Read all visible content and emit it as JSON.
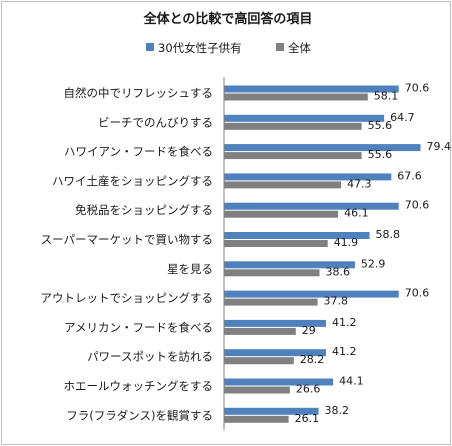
{
  "chart_data": {
    "type": "bar",
    "orientation": "horizontal",
    "title": "全体との比較で高回答の項目",
    "categories": [
      "自然の中でリフレッシュする",
      "ビーチでのんびりする",
      "ハワイアン・フードを食べる",
      "ハワイ土産をショッピングする",
      "免税品をショッピングする",
      "スーパーマーケットで買い物する",
      "星を見る",
      "アウトレットでショッピングする",
      "アメリカン・フードを食べる",
      "パワースポットを訪れる",
      "ホエールウォッチングをする",
      "フラ(フラダンス)を観賞する"
    ],
    "series": [
      {
        "name": "30代女性子供有",
        "color": "#4f81bd",
        "values": [
          70.6,
          64.7,
          79.4,
          67.6,
          70.6,
          58.8,
          52.9,
          70.6,
          41.2,
          41.2,
          44.1,
          38.2
        ],
        "labels": [
          "70.6",
          "64.7",
          "79.4",
          "67.6",
          "70.6",
          "58.8",
          "52.9",
          "70.6",
          "41.2",
          "41.2",
          "44.1",
          "38.2"
        ]
      },
      {
        "name": "全体",
        "color": "#808080",
        "values": [
          58.1,
          55.6,
          55.6,
          47.3,
          46.1,
          41.9,
          38.6,
          37.8,
          29,
          28.2,
          26.6,
          26.1
        ],
        "labels": [
          "58.1",
          "55.6",
          "55.6",
          "47.3",
          "46.1",
          "41.9",
          "38.6",
          "37.8",
          "29",
          "28.2",
          "26.6",
          "26.1"
        ]
      }
    ],
    "xlim": [
      0,
      80
    ],
    "grid": false,
    "legend_position": "top"
  }
}
